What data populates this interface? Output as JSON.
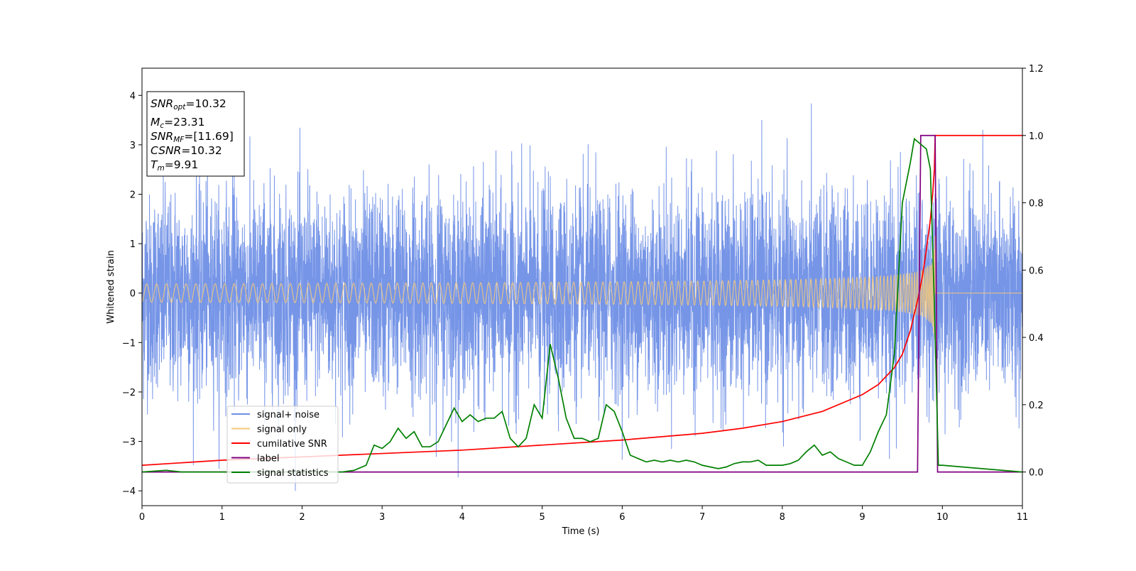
{
  "chart_data": {
    "type": "line",
    "xlabel": "Time (s)",
    "ylabel": "Whitened strain",
    "xlim": [
      0,
      11
    ],
    "ylim_left": [
      -4.3,
      4.55
    ],
    "ylim_right": [
      -0.1,
      1.2
    ],
    "x_ticks": [
      "0",
      "1",
      "2",
      "3",
      "4",
      "5",
      "6",
      "7",
      "8",
      "9",
      "10",
      "11"
    ],
    "y_left_ticks": [
      "−4",
      "−3",
      "−2",
      "−1",
      "0",
      "1",
      "2",
      "3",
      "4"
    ],
    "y_right_ticks": [
      "0.0",
      "0.2",
      "0.4",
      "0.6",
      "0.8",
      "1.0",
      "1.2"
    ],
    "grid": false,
    "legend_position": "lower-left",
    "annotation_box": [
      {
        "main": "SNR",
        "sub": "opt",
        "rest": "=10.32"
      },
      {
        "main": "M",
        "sub": "c",
        "rest": "=23.31"
      },
      {
        "main": "SNR",
        "sub": "MF",
        "rest": "=[11.69]"
      },
      {
        "main": "CSNR",
        "sub": "",
        "rest": "=10.32"
      },
      {
        "main": "T",
        "sub": "m",
        "rest": "=9.91"
      }
    ],
    "series": [
      {
        "name": "signal+ noise",
        "color": "#6f8fe6",
        "axis": "left",
        "description_values": {
          "noise_std": 1.0,
          "t_start": 0,
          "t_end": 11
        }
      },
      {
        "name": "signal only",
        "color": "#f5c97a",
        "axis": "left",
        "chirp_values": {
          "t_merge": 9.91,
          "peak_amplitude": 1.3
        }
      },
      {
        "name": "cumilative SNR",
        "color": "#ff0000",
        "axis": "right",
        "x": [
          0,
          1,
          2,
          3,
          4,
          5,
          6,
          7,
          7.5,
          8,
          8.5,
          9,
          9.2,
          9.4,
          9.5,
          9.6,
          9.7,
          9.75,
          9.8,
          9.85,
          9.88,
          9.9,
          9.91,
          11
        ],
        "y": [
          0.02,
          0.035,
          0.045,
          0.055,
          0.065,
          0.08,
          0.095,
          0.115,
          0.13,
          0.15,
          0.18,
          0.23,
          0.26,
          0.31,
          0.35,
          0.42,
          0.52,
          0.58,
          0.66,
          0.75,
          0.83,
          0.9,
          1.0,
          1.0
        ]
      },
      {
        "name": "label",
        "color": "#800080",
        "axis": "right",
        "x": [
          0,
          9.69,
          9.73,
          9.91,
          9.94,
          11
        ],
        "y": [
          0,
          0,
          1.0,
          1.0,
          0,
          0
        ]
      },
      {
        "name": "signal statistics",
        "color": "#008000",
        "axis": "right",
        "x": [
          0,
          0.3,
          0.5,
          1,
          1.5,
          2,
          2.5,
          2.65,
          2.8,
          2.9,
          3.0,
          3.1,
          3.2,
          3.3,
          3.4,
          3.5,
          3.6,
          3.7,
          3.8,
          3.9,
          4.0,
          4.1,
          4.2,
          4.3,
          4.4,
          4.5,
          4.6,
          4.7,
          4.8,
          4.9,
          5.0,
          5.1,
          5.2,
          5.3,
          5.4,
          5.5,
          5.6,
          5.7,
          5.8,
          5.9,
          6.0,
          6.1,
          6.2,
          6.3,
          6.4,
          6.5,
          6.6,
          6.7,
          6.8,
          6.9,
          7.0,
          7.1,
          7.2,
          7.3,
          7.4,
          7.5,
          7.6,
          7.7,
          7.8,
          7.9,
          8.0,
          8.1,
          8.2,
          8.3,
          8.4,
          8.5,
          8.6,
          8.7,
          8.8,
          8.9,
          9.0,
          9.1,
          9.2,
          9.3,
          9.4,
          9.5,
          9.6,
          9.65,
          9.7,
          9.75,
          9.8,
          9.85,
          9.9,
          9.95,
          10.0,
          11.0
        ],
        "y": [
          0.0,
          0.005,
          0.0,
          0.0,
          0.0,
          0.0,
          0.0,
          0.005,
          0.02,
          0.08,
          0.07,
          0.09,
          0.13,
          0.1,
          0.12,
          0.075,
          0.075,
          0.09,
          0.14,
          0.19,
          0.15,
          0.17,
          0.15,
          0.16,
          0.16,
          0.18,
          0.1,
          0.075,
          0.1,
          0.2,
          0.16,
          0.38,
          0.28,
          0.16,
          0.1,
          0.1,
          0.09,
          0.1,
          0.2,
          0.18,
          0.12,
          0.05,
          0.04,
          0.03,
          0.035,
          0.03,
          0.035,
          0.03,
          0.035,
          0.03,
          0.02,
          0.015,
          0.01,
          0.015,
          0.025,
          0.03,
          0.03,
          0.035,
          0.02,
          0.02,
          0.02,
          0.025,
          0.035,
          0.06,
          0.08,
          0.05,
          0.06,
          0.04,
          0.03,
          0.02,
          0.02,
          0.06,
          0.12,
          0.17,
          0.35,
          0.8,
          0.92,
          0.99,
          0.98,
          0.97,
          0.96,
          0.9,
          0.5,
          0.02,
          0.02,
          0.0
        ]
      }
    ]
  }
}
